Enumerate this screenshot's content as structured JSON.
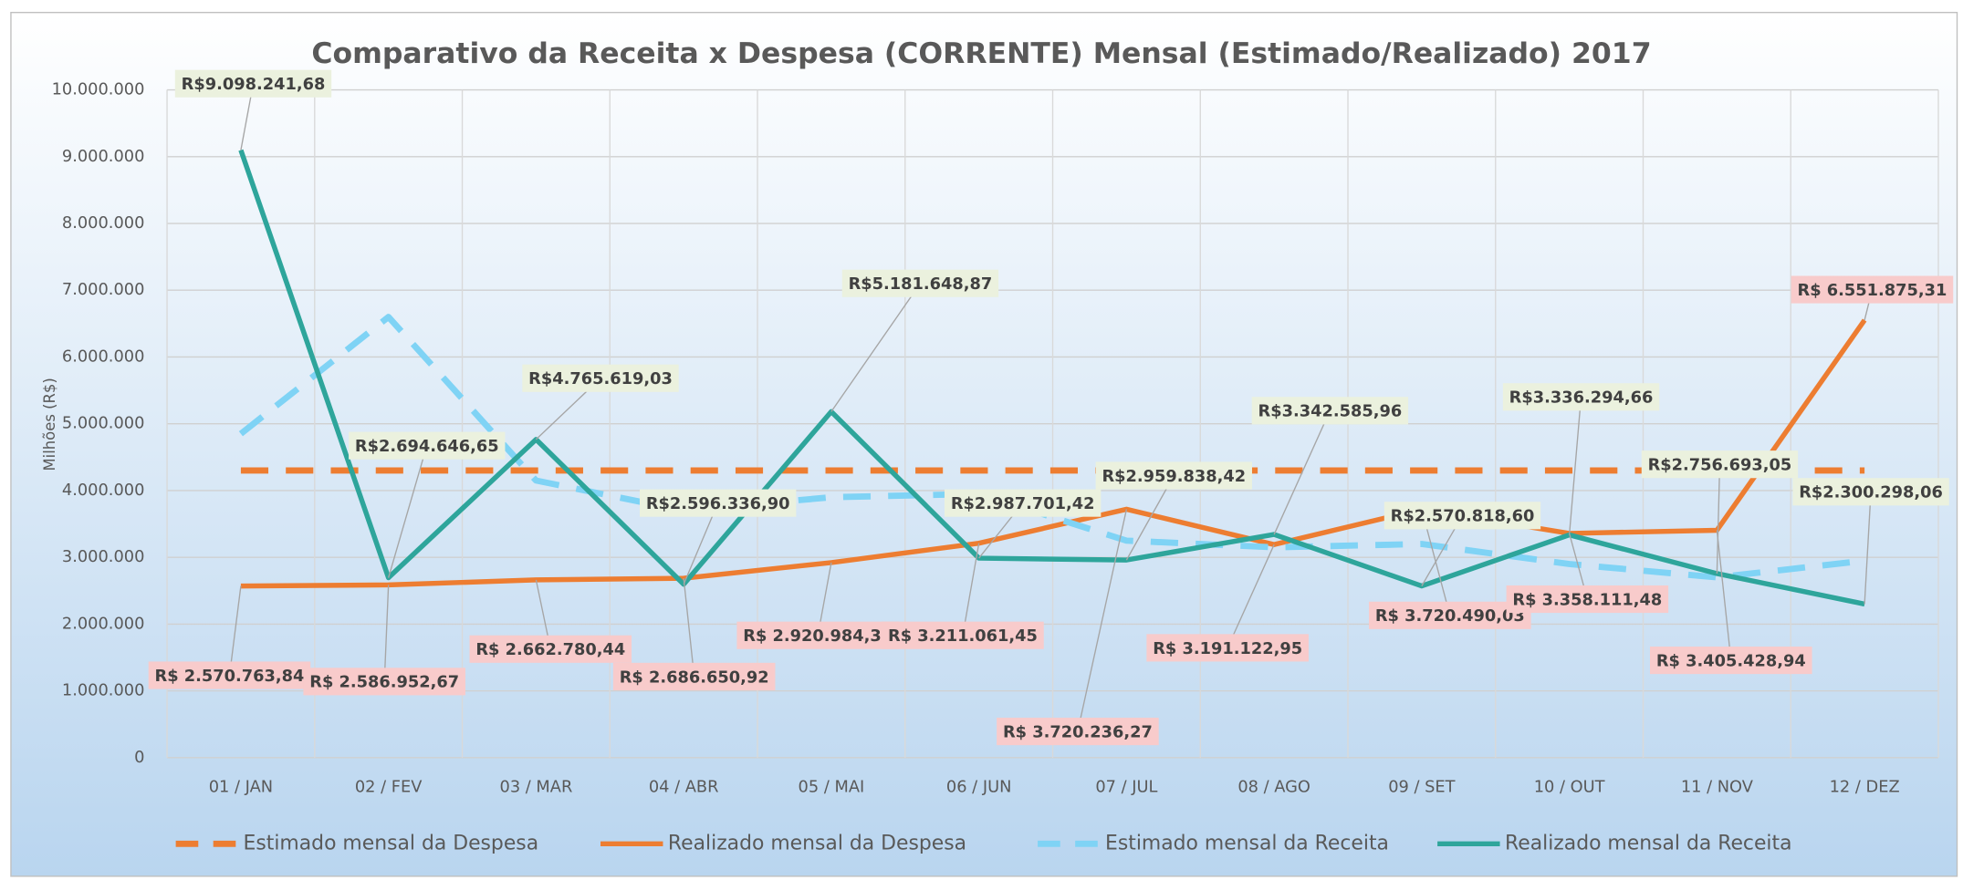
{
  "chart_data": {
    "type": "line",
    "title": "Comparativo da Receita x Despesa (CORRENTE) Mensal (Estimado/Realizado) 2017",
    "y_label": "Milhões (R$)",
    "categories": [
      "01 / JAN",
      "02 / FEV",
      "03 / MAR",
      "04 / ABR",
      "05 / MAI",
      "06 / JUN",
      "07 / JUL",
      "08 / AGO",
      "09 / SET",
      "10 / OUT",
      "11 / NOV",
      "12 / DEZ"
    ],
    "ylim": [
      0,
      10000000
    ],
    "yticks": [
      0,
      {
        "value": 1000000,
        "label": "1.000.000"
      },
      {
        "value": 2000000,
        "label": "2.000.000"
      },
      {
        "value": 3000000,
        "label": "3.000.000"
      },
      {
        "value": 4000000,
        "label": "4.000.000"
      },
      {
        "value": 5000000,
        "label": "5.000.000"
      },
      {
        "value": 6000000,
        "label": "6.000.000"
      },
      {
        "value": 7000000,
        "label": "7.000.000"
      },
      {
        "value": 8000000,
        "label": "8.000.000"
      },
      {
        "value": 9000000,
        "label": "9.000.000"
      },
      {
        "value": 10000000,
        "label": "10.000.000"
      }
    ],
    "grid": true,
    "legend": "bottom",
    "series": [
      {
        "name": "Estimado mensal da Despesa",
        "color": "#ed7d31",
        "dashed": true,
        "values": [
          4300000,
          4300000,
          4300000,
          4300000,
          4300000,
          4300000,
          4300000,
          4300000,
          4300000,
          4300000,
          4300000,
          4300000
        ]
      },
      {
        "name": "Realizado mensal da Despesa",
        "color": "#ed7d31",
        "dashed": false,
        "values": [
          2570763.84,
          2586952.67,
          2662780.44,
          2686650.92,
          2920984.3,
          3211061.45,
          3720236.27,
          3191122.95,
          3720490.03,
          3358111.48,
          3405428.94,
          6551875.31
        ],
        "value_labels": [
          "R$ 2.570.763,84",
          "R$ 2.586.952,67",
          "R$ 2.662.780,44",
          "R$ 2.686.650,92",
          "R$ 2.920.984,30",
          "R$ 3.211.061,45",
          "R$ 3.720.236,27",
          "R$ 3.191.122,95",
          "R$ 3.720.490,03",
          "R$ 3.358.111,48",
          "R$ 3.405.428,94",
          "R$ 6.551.875,31"
        ]
      },
      {
        "name": "Estimado mensal da Receita",
        "color": "#7fd3f5",
        "dashed": true,
        "values": [
          4850000,
          6600000,
          4150000,
          3700000,
          3900000,
          3950000,
          3250000,
          3150000,
          3200000,
          2900000,
          2700000,
          2950000
        ]
      },
      {
        "name": "Realizado mensal da  Receita",
        "color": "#2ea59b",
        "dashed": false,
        "values": [
          9098241.68,
          2694646.65,
          4765619.03,
          2596336.9,
          5181648.87,
          2987701.42,
          2959838.42,
          3342585.96,
          2570818.6,
          3336294.66,
          2756693.05,
          2300298.06
        ],
        "value_labels": [
          "R$9.098.241,68",
          "R$2.694.646,65",
          "R$4.765.619,03",
          "R$2.596.336,90",
          "R$5.181.648,87",
          "R$2.987.701,42",
          "R$2.959.838,42",
          "R$3.342.585,96",
          "R$2.570.818,60",
          "R$3.336.294,66",
          "R$2.756.693,05",
          "R$2.300.298,06"
        ]
      }
    ]
  }
}
